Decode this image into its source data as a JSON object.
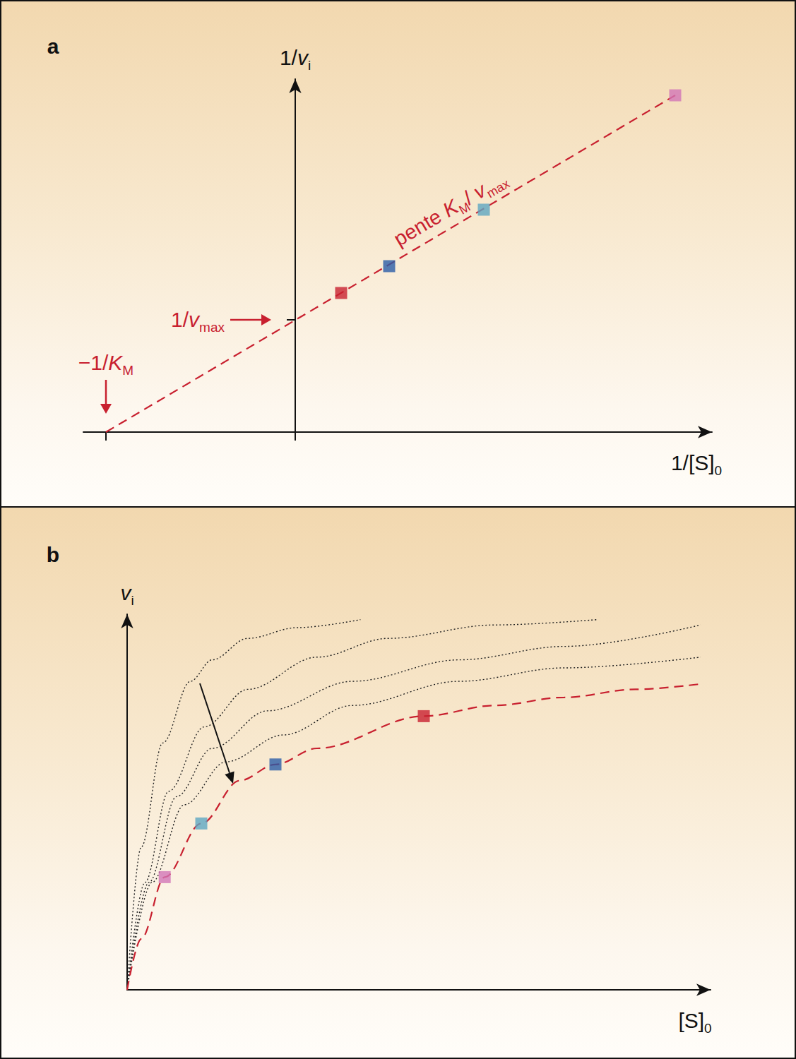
{
  "chart_data": [
    {
      "type": "line",
      "title": "a",
      "x_label": [
        {
          "text": "1/[S]"
        },
        {
          "text": "0",
          "sub": true
        }
      ],
      "y_label": [
        {
          "text": "1/"
        },
        {
          "text": "v",
          "italic": true
        },
        {
          "text": "i",
          "sub": true
        }
      ],
      "xlim": [
        -3,
        5.9
      ],
      "ylim": [
        0,
        5
      ],
      "xticks": [
        -2.68,
        0
      ],
      "yticks": [
        1.59
      ],
      "tick_labels": false,
      "grid": false,
      "series": [
        {
          "type": "line",
          "line_style": "dashed",
          "color": "#c8202f",
          "x": [
            -2.68,
            5.38
          ],
          "values": [
            0,
            4.77
          ]
        },
        {
          "type": "scatter",
          "marker": "square",
          "colors": [
            "#c8202f",
            "#2a5ca8",
            "#5ea6c2",
            "#d275b6"
          ],
          "x": [
            0.65,
            1.33,
            2.67,
            5.38
          ],
          "values": [
            1.97,
            2.35,
            3.15,
            4.77
          ]
        }
      ],
      "annotations": [
        {
          "label": [
            {
              "text": "−1/"
            },
            {
              "text": "K",
              "italic": true
            },
            {
              "text": "M",
              "sub": true
            }
          ],
          "x": -2.68,
          "y": 0,
          "color": "#c8202f"
        },
        {
          "label": [
            {
              "text": "1/"
            },
            {
              "text": "v",
              "italic": true
            },
            {
              "text": "max",
              "sub": true
            }
          ],
          "x": 0,
          "y": 1.59,
          "color": "#c8202f"
        },
        {
          "label": [
            {
              "text": "pente "
            },
            {
              "text": "K",
              "italic": true
            },
            {
              "text": "M",
              "sub": true
            },
            {
              "text": "/ "
            },
            {
              "text": "v",
              "italic": true
            },
            {
              "text": "max",
              "sub": true
            }
          ],
          "color": "#c8202f"
        }
      ]
    },
    {
      "type": "line",
      "title": "b",
      "x_label": [
        {
          "text": "[S]"
        },
        {
          "text": "0",
          "sub": true
        }
      ],
      "y_label": [
        {
          "text": "v",
          "italic": true
        },
        {
          "text": "i",
          "sub": true
        }
      ],
      "xlim": [
        0,
        2.95
      ],
      "ylim": [
        0,
        0.7
      ],
      "xticks": [],
      "yticks": [],
      "tick_labels": false,
      "grid": false,
      "series": [
        {
          "type": "line",
          "line_style": "dotted",
          "color": "#222222",
          "x": [
            0,
            0.071,
            0.18,
            0.32,
            0.43,
            0.61,
            0.86,
            1.18
          ],
          "values": [
            0,
            0.266,
            0.46,
            0.575,
            0.615,
            0.655,
            0.675,
            0.69
          ]
        },
        {
          "type": "line",
          "line_style": "dotted",
          "color": "#222222",
          "x": [
            0,
            0.09,
            0.21,
            0.39,
            0.61,
            0.96,
            1.32,
            1.86,
            2.38
          ],
          "values": [
            0,
            0.2,
            0.37,
            0.49,
            0.56,
            0.62,
            0.655,
            0.68,
            0.69
          ]
        },
        {
          "type": "line",
          "line_style": "dotted",
          "color": "#222222",
          "x": [
            0,
            0.11,
            0.25,
            0.43,
            0.71,
            1.14,
            1.68,
            2.21,
            2.9
          ],
          "values": [
            0,
            0.2,
            0.36,
            0.45,
            0.52,
            0.575,
            0.615,
            0.64,
            0.68
          ]
        },
        {
          "type": "line",
          "line_style": "dotted",
          "color": "#222222",
          "x": [
            0,
            0.125,
            0.29,
            0.5,
            0.79,
            1.14,
            1.68,
            2.21,
            2.9
          ],
          "values": [
            0,
            0.2,
            0.345,
            0.425,
            0.475,
            0.53,
            0.575,
            0.6,
            0.62
          ]
        },
        {
          "type": "line",
          "line_style": "dashed",
          "color": "#c8202f",
          "x": [
            0,
            0.071,
            0.19,
            0.375,
            0.57,
            0.75,
            0.96,
            1.5,
            1.86,
            2.21,
            2.57,
            2.9
          ],
          "values": [
            0,
            0.095,
            0.21,
            0.31,
            0.39,
            0.42,
            0.45,
            0.51,
            0.53,
            0.545,
            0.56,
            0.57
          ]
        },
        {
          "type": "scatter",
          "marker": "square",
          "colors": [
            "#d275b6",
            "#5ea6c2",
            "#2a5ca8",
            "#c8202f"
          ],
          "x": [
            0.19,
            0.375,
            0.75,
            1.5
          ],
          "values": [
            0.21,
            0.31,
            0.42,
            0.51
          ]
        }
      ]
    }
  ]
}
